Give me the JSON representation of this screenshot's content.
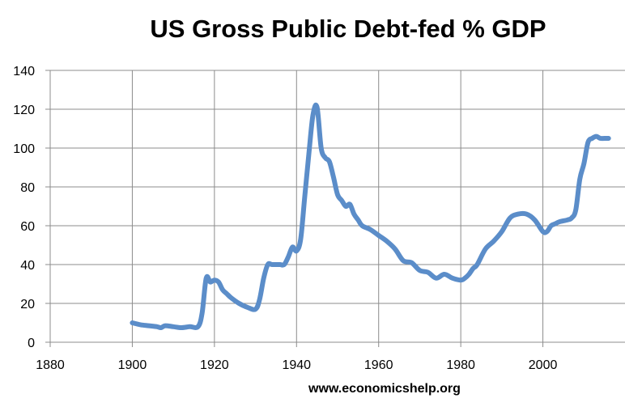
{
  "chart_data": {
    "type": "line",
    "title": "US Gross Public Debt-fed % GDP",
    "source": "www.economicshelp.org",
    "xlabel": "",
    "ylabel": "",
    "xlim": [
      1880,
      2020
    ],
    "ylim": [
      0,
      140
    ],
    "x_ticks": [
      "1880",
      "1900",
      "1920",
      "1940",
      "1960",
      "1980",
      "2000"
    ],
    "y_ticks": [
      "0",
      "20",
      "40",
      "60",
      "80",
      "100",
      "120",
      "140"
    ],
    "grid": true,
    "legend": "none",
    "colors": {
      "line": "#5b8dc9",
      "grid": "#8c8c8c",
      "axis": "#8c8c8c"
    },
    "series": [
      {
        "x": [
          1900,
          1902,
          1904,
          1906,
          1907,
          1908,
          1910,
          1912,
          1914,
          1916,
          1917,
          1918,
          1919,
          1920,
          1921,
          1922,
          1923,
          1924,
          1926,
          1928,
          1930,
          1931,
          1932,
          1933,
          1934,
          1935,
          1936,
          1937,
          1938,
          1939,
          1940,
          1941,
          1942,
          1943,
          1944,
          1945,
          1946,
          1947,
          1948,
          1949,
          1950,
          1951,
          1952,
          1953,
          1954,
          1955,
          1956,
          1958,
          1960,
          1962,
          1964,
          1966,
          1968,
          1970,
          1972,
          1974,
          1976,
          1978,
          1980,
          1981,
          1982,
          1983,
          1984,
          1986,
          1988,
          1990,
          1992,
          1994,
          1996,
          1998,
          2000,
          2001,
          2002,
          2003,
          2004,
          2006,
          2007,
          2008,
          2009,
          2010,
          2011,
          2012,
          2013,
          2014,
          2015,
          2016
        ],
        "y": [
          10,
          9,
          8.5,
          8,
          7.5,
          8.5,
          8,
          7.5,
          8,
          8,
          15,
          33,
          31,
          32,
          31,
          27,
          25,
          23,
          20,
          18,
          17,
          22,
          33,
          40,
          40,
          40,
          40,
          40,
          44,
          49,
          47,
          53,
          75,
          97,
          117,
          121,
          100,
          95,
          93,
          85,
          76,
          73,
          70,
          71,
          66,
          63,
          60,
          58,
          55,
          52,
          48,
          42,
          41,
          37,
          36,
          33,
          35,
          33,
          32,
          33,
          35,
          38,
          40,
          48,
          52,
          57,
          64,
          66,
          66,
          63,
          57,
          57,
          60,
          61,
          62,
          63,
          64,
          68,
          84,
          92,
          103,
          105,
          106,
          105,
          105,
          105
        ]
      }
    ]
  }
}
